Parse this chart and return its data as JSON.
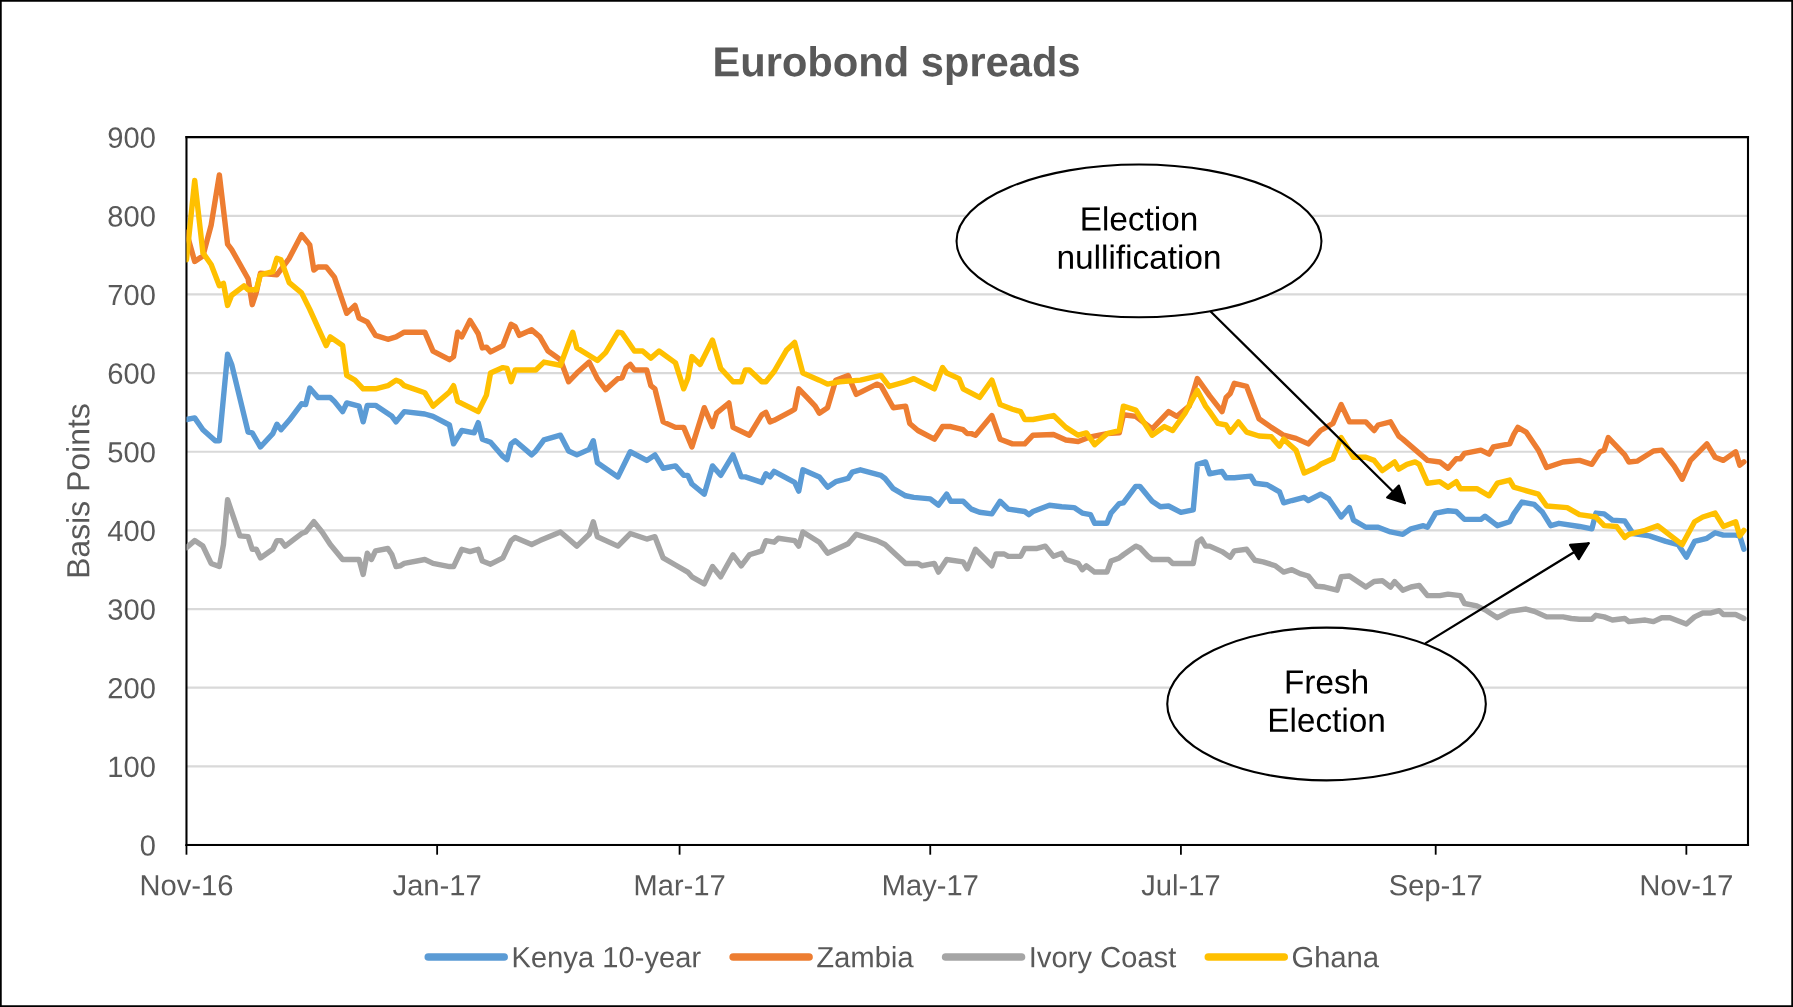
{
  "chart_data": {
    "type": "line",
    "title": "Eurobond spreads",
    "ylabel": "Basis Points",
    "xlim": [
      "2016-11-01",
      "2017-11-16"
    ],
    "xticks": [
      {
        "value": "2016-11-01",
        "label": "Nov-16"
      },
      {
        "value": "2017-01-01",
        "label": "Jan-17"
      },
      {
        "value": "2017-03-01",
        "label": "Mar-17"
      },
      {
        "value": "2017-05-01",
        "label": "May-17"
      },
      {
        "value": "2017-07-01",
        "label": "Jul-17"
      },
      {
        "value": "2017-09-01",
        "label": "Sep-17"
      },
      {
        "value": "2017-11-01",
        "label": "Nov-17"
      }
    ],
    "ylim": [
      0,
      900
    ],
    "yticks": [
      0,
      100,
      200,
      300,
      400,
      500,
      600,
      700,
      800,
      900
    ],
    "grid": "y",
    "legend": "bottom",
    "annotations": [
      "Election\nnullification",
      "Fresh\nElection"
    ],
    "series": [
      {
        "name": "Kenya 10-year",
        "color": "#5b9bd5",
        "x": [
          "2016-11-01",
          "2016-11-03",
          "2016-11-05",
          "2016-11-08",
          "2016-11-09",
          "2016-11-11",
          "2016-11-12",
          "2016-11-16",
          "2016-11-17",
          "2016-11-19",
          "2016-11-22",
          "2016-11-23",
          "2016-11-24",
          "2016-11-26",
          "2016-11-29",
          "2016-11-30",
          "2016-12-01",
          "2016-12-03",
          "2016-12-06",
          "2016-12-07",
          "2016-12-09",
          "2016-12-10",
          "2016-12-13",
          "2016-12-14",
          "2016-12-15",
          "2016-12-17",
          "2016-12-21",
          "2016-12-22",
          "2016-12-24",
          "2016-12-29",
          "2016-12-31",
          "2017-01-04",
          "2017-01-05",
          "2017-01-07",
          "2017-01-10",
          "2017-01-11",
          "2017-01-12",
          "2017-01-14",
          "2017-01-17",
          "2017-01-18",
          "2017-01-19",
          "2017-01-20",
          "2017-01-24",
          "2017-01-25",
          "2017-01-27",
          "2017-01-31",
          "2017-02-02",
          "2017-02-04",
          "2017-02-07",
          "2017-02-08",
          "2017-02-09",
          "2017-02-14",
          "2017-02-17",
          "2017-02-21",
          "2017-02-23",
          "2017-02-25",
          "2017-02-28",
          "2017-03-02",
          "2017-03-03",
          "2017-03-04",
          "2017-03-07",
          "2017-03-09",
          "2017-03-11",
          "2017-03-14",
          "2017-03-16",
          "2017-03-17",
          "2017-03-21",
          "2017-03-22",
          "2017-03-23",
          "2017-03-24",
          "2017-03-29",
          "2017-03-30",
          "2017-03-31",
          "2017-04-04",
          "2017-04-06",
          "2017-04-08",
          "2017-04-11",
          "2017-04-12",
          "2017-04-14",
          "2017-04-19",
          "2017-04-20",
          "2017-04-22",
          "2017-04-25",
          "2017-04-27",
          "2017-05-01",
          "2017-05-03",
          "2017-05-05",
          "2017-05-06",
          "2017-05-09",
          "2017-05-11",
          "2017-05-13",
          "2017-05-16",
          "2017-05-18",
          "2017-05-20",
          "2017-05-24",
          "2017-05-25",
          "2017-05-26",
          "2017-05-30",
          "2017-06-02",
          "2017-06-05",
          "2017-06-07",
          "2017-06-09",
          "2017-06-10",
          "2017-06-13",
          "2017-06-14",
          "2017-06-16",
          "2017-06-17",
          "2017-06-20",
          "2017-06-21",
          "2017-06-24",
          "2017-06-26",
          "2017-06-28",
          "2017-07-01",
          "2017-07-04",
          "2017-07-05",
          "2017-07-07",
          "2017-07-08",
          "2017-07-11",
          "2017-07-12",
          "2017-07-14",
          "2017-07-18",
          "2017-07-19",
          "2017-07-22",
          "2017-07-25",
          "2017-07-26",
          "2017-07-28",
          "2017-07-31",
          "2017-08-01",
          "2017-08-04",
          "2017-08-06",
          "2017-08-09",
          "2017-08-11",
          "2017-08-12",
          "2017-08-15",
          "2017-08-18",
          "2017-08-21",
          "2017-08-24",
          "2017-08-26",
          "2017-08-29",
          "2017-08-30",
          "2017-09-01",
          "2017-09-04",
          "2017-09-06",
          "2017-09-08",
          "2017-09-12",
          "2017-09-13",
          "2017-09-16",
          "2017-09-19",
          "2017-09-20",
          "2017-09-22",
          "2017-09-25",
          "2017-09-27",
          "2017-09-29",
          "2017-10-01",
          "2017-10-06",
          "2017-10-09",
          "2017-10-10",
          "2017-10-12",
          "2017-10-14",
          "2017-10-17",
          "2017-10-19",
          "2017-10-23",
          "2017-10-27",
          "2017-10-30",
          "2017-11-01",
          "2017-11-03",
          "2017-11-06",
          "2017-11-08",
          "2017-11-10",
          "2017-11-13",
          "2017-11-14",
          "2017-11-15"
        ],
        "values": [
          541,
          543,
          528,
          514,
          514,
          624,
          611,
          525,
          524,
          506,
          523,
          535,
          528,
          540,
          561,
          560,
          581,
          569,
          569,
          564,
          551,
          562,
          558,
          538,
          559,
          559,
          545,
          538,
          551,
          548,
          545,
          534,
          510,
          527,
          524,
          537,
          516,
          512,
          494,
          490,
          510,
          514,
          496,
          501,
          515,
          521,
          501,
          496,
          503,
          514,
          486,
          468,
          500,
          489,
          496,
          479,
          482,
          470,
          470,
          459,
          446,
          482,
          470,
          496,
          468,
          468,
          461,
          472,
          468,
          475,
          461,
          450,
          477,
          468,
          455,
          462,
          466,
          474,
          477,
          470,
          466,
          453,
          444,
          442,
          440,
          432,
          446,
          437,
          437,
          427,
          423,
          421,
          437,
          427,
          424,
          420,
          424,
          432,
          430,
          429,
          422,
          420,
          409,
          409,
          422,
          434,
          435,
          456,
          456,
          437,
          430,
          431,
          423,
          426,
          484,
          487,
          472,
          475,
          467,
          467,
          469,
          460,
          458,
          449,
          435,
          438,
          442,
          438,
          446,
          440,
          417,
          429,
          413,
          404,
          404,
          398,
          395,
          402,
          406,
          404,
          422,
          425,
          424,
          414,
          414,
          418,
          406,
          411,
          421,
          436,
          433,
          423,
          406,
          409,
          405,
          402,
          422,
          421,
          413,
          412,
          396,
          393,
          386,
          382,
          366,
          386,
          390,
          397,
          394,
          394,
          393,
          376
        ]
      },
      {
        "name": "Zambia",
        "color": "#ed7d31",
        "x": [
          "2016-11-01",
          "2016-11-03",
          "2016-11-05",
          "2016-11-07",
          "2016-11-09",
          "2016-11-11",
          "2016-11-12",
          "2016-11-16",
          "2016-11-17",
          "2016-11-18",
          "2016-11-19",
          "2016-11-23",
          "2016-11-26",
          "2016-11-29",
          "2016-12-01",
          "2016-12-02",
          "2016-12-03",
          "2016-12-05",
          "2016-12-07",
          "2016-12-10",
          "2016-12-12",
          "2016-12-13",
          "2016-12-15",
          "2016-12-17",
          "2016-12-20",
          "2016-12-22",
          "2016-12-24",
          "2016-12-29",
          "2016-12-31",
          "2017-01-04",
          "2017-01-05",
          "2017-01-06",
          "2017-01-07",
          "2017-01-09",
          "2017-01-11",
          "2017-01-12",
          "2017-01-13",
          "2017-01-14",
          "2017-01-17",
          "2017-01-19",
          "2017-01-20",
          "2017-01-21",
          "2017-01-24",
          "2017-01-26",
          "2017-01-28",
          "2017-01-31",
          "2017-02-02",
          "2017-02-04",
          "2017-02-07",
          "2017-02-09",
          "2017-02-11",
          "2017-02-14",
          "2017-02-15",
          "2017-02-16",
          "2017-02-17",
          "2017-02-18",
          "2017-02-21",
          "2017-02-22",
          "2017-02-23",
          "2017-02-25",
          "2017-02-28",
          "2017-03-02",
          "2017-03-04",
          "2017-03-07",
          "2017-03-09",
          "2017-03-10",
          "2017-03-13",
          "2017-03-14",
          "2017-03-18",
          "2017-03-21",
          "2017-03-22",
          "2017-03-23",
          "2017-03-24",
          "2017-03-28",
          "2017-03-29",
          "2017-03-30",
          "2017-04-01",
          "2017-04-03",
          "2017-04-04",
          "2017-04-06",
          "2017-04-08",
          "2017-04-11",
          "2017-04-13",
          "2017-04-18",
          "2017-04-19",
          "2017-04-22",
          "2017-04-25",
          "2017-04-26",
          "2017-04-28",
          "2017-05-02",
          "2017-05-04",
          "2017-05-06",
          "2017-05-09",
          "2017-05-10",
          "2017-05-11",
          "2017-05-12",
          "2017-05-16",
          "2017-05-18",
          "2017-05-21",
          "2017-05-24",
          "2017-05-26",
          "2017-05-31",
          "2017-06-03",
          "2017-06-06",
          "2017-06-09",
          "2017-06-13",
          "2017-06-16",
          "2017-06-17",
          "2017-06-20",
          "2017-06-24",
          "2017-06-28",
          "2017-06-30",
          "2017-07-03",
          "2017-07-05",
          "2017-07-08",
          "2017-07-11",
          "2017-07-12",
          "2017-07-13",
          "2017-07-14",
          "2017-07-17",
          "2017-07-20",
          "2017-07-23",
          "2017-07-26",
          "2017-07-29",
          "2017-08-01",
          "2017-08-04",
          "2017-08-07",
          "2017-08-09",
          "2017-08-11",
          "2017-08-15",
          "2017-08-17",
          "2017-08-18",
          "2017-08-21",
          "2017-08-23",
          "2017-08-24",
          "2017-08-30",
          "2017-09-02",
          "2017-09-04",
          "2017-09-06",
          "2017-09-07",
          "2017-09-08",
          "2017-09-12",
          "2017-09-14",
          "2017-09-15",
          "2017-09-19",
          "2017-09-20",
          "2017-09-21",
          "2017-09-23",
          "2017-09-26",
          "2017-09-28",
          "2017-10-02",
          "2017-10-06",
          "2017-10-09",
          "2017-10-11",
          "2017-10-12",
          "2017-10-13",
          "2017-10-17",
          "2017-10-18",
          "2017-10-20",
          "2017-10-24",
          "2017-10-26",
          "2017-10-29",
          "2017-10-31",
          "2017-11-02",
          "2017-11-06",
          "2017-11-08",
          "2017-11-10",
          "2017-11-13",
          "2017-11-14",
          "2017-11-15"
        ],
        "values": [
          779,
          742,
          749,
          788,
          852,
          764,
          757,
          720,
          687,
          703,
          727,
          725,
          746,
          776,
          763,
          731,
          735,
          735,
          722,
          676,
          686,
          670,
          665,
          648,
          643,
          646,
          652,
          652,
          628,
          617,
          621,
          652,
          646,
          667,
          650,
          632,
          633,
          627,
          635,
          662,
          659,
          648,
          655,
          646,
          628,
          617,
          589,
          600,
          614,
          593,
          579,
          593,
          594,
          607,
          611,
          604,
          604,
          584,
          580,
          538,
          531,
          531,
          506,
          556,
          532,
          549,
          562,
          531,
          521,
          547,
          550,
          538,
          540,
          551,
          554,
          580,
          569,
          558,
          549,
          556,
          591,
          597,
          573,
          586,
          584,
          556,
          558,
          536,
          527,
          516,
          532,
          532,
          528,
          523,
          523,
          521,
          546,
          516,
          510,
          510,
          521,
          522,
          515,
          513,
          519,
          523,
          524,
          547,
          545,
          529,
          551,
          545,
          558,
          593,
          571,
          551,
          569,
          574,
          587,
          583,
          542,
          531,
          521,
          517,
          510,
          527,
          536,
          560,
          538,
          538,
          527,
          534,
          538,
          520,
          516,
          489,
          487,
          479,
          491,
          491,
          498,
          502,
          497,
          506,
          510,
          522,
          531,
          525,
          502,
          480,
          487,
          489,
          484,
          500,
          502,
          518,
          496,
          487,
          488,
          501,
          502,
          482,
          465,
          489,
          510,
          493,
          489,
          500,
          483,
          487
        ]
      },
      {
        "name": "Ivory Coast",
        "color": "#a5a5a5",
        "x": [
          "2016-11-01",
          "2016-11-03",
          "2016-11-05",
          "2016-11-07",
          "2016-11-09",
          "2016-11-10",
          "2016-11-11",
          "2016-11-14",
          "2016-11-16",
          "2016-11-17",
          "2016-11-18",
          "2016-11-19",
          "2016-11-22",
          "2016-11-23",
          "2016-11-24",
          "2016-11-25",
          "2016-11-29",
          "2016-11-30",
          "2016-12-02",
          "2016-12-04",
          "2016-12-06",
          "2016-12-09",
          "2016-12-13",
          "2016-12-14",
          "2016-12-15",
          "2016-12-16",
          "2016-12-17",
          "2016-12-20",
          "2016-12-21",
          "2016-12-22",
          "2016-12-23",
          "2016-12-24",
          "2016-12-29",
          "2016-12-31",
          "2017-01-04",
          "2017-01-05",
          "2017-01-07",
          "2017-01-09",
          "2017-01-11",
          "2017-01-12",
          "2017-01-14",
          "2017-01-17",
          "2017-01-19",
          "2017-01-20",
          "2017-01-24",
          "2017-01-26",
          "2017-01-31",
          "2017-02-02",
          "2017-02-04",
          "2017-02-07",
          "2017-02-08",
          "2017-02-09",
          "2017-02-14",
          "2017-02-17",
          "2017-02-21",
          "2017-02-23",
          "2017-02-25",
          "2017-02-28",
          "2017-03-03",
          "2017-03-04",
          "2017-03-07",
          "2017-03-09",
          "2017-03-11",
          "2017-03-14",
          "2017-03-16",
          "2017-03-18",
          "2017-03-21",
          "2017-03-22",
          "2017-03-24",
          "2017-03-25",
          "2017-03-29",
          "2017-03-30",
          "2017-03-31",
          "2017-04-04",
          "2017-04-06",
          "2017-04-11",
          "2017-04-13",
          "2017-04-18",
          "2017-04-20",
          "2017-04-25",
          "2017-04-28",
          "2017-04-29",
          "2017-05-02",
          "2017-05-03",
          "2017-05-05",
          "2017-05-09",
          "2017-05-10",
          "2017-05-12",
          "2017-05-16",
          "2017-05-17",
          "2017-05-19",
          "2017-05-20",
          "2017-05-23",
          "2017-05-24",
          "2017-05-27",
          "2017-05-29",
          "2017-05-31",
          "2017-06-02",
          "2017-06-03",
          "2017-06-06",
          "2017-06-07",
          "2017-06-08",
          "2017-06-10",
          "2017-06-13",
          "2017-06-14",
          "2017-06-16",
          "2017-06-17",
          "2017-06-20",
          "2017-06-21",
          "2017-06-23",
          "2017-06-24",
          "2017-06-28",
          "2017-06-29",
          "2017-07-04",
          "2017-07-05",
          "2017-07-06",
          "2017-07-07",
          "2017-07-08",
          "2017-07-11",
          "2017-07-13",
          "2017-07-14",
          "2017-07-17",
          "2017-07-19",
          "2017-07-21",
          "2017-07-24",
          "2017-07-26",
          "2017-07-28",
          "2017-07-30",
          "2017-08-01",
          "2017-08-03",
          "2017-08-05",
          "2017-08-08",
          "2017-08-09",
          "2017-08-11",
          "2017-08-15",
          "2017-08-17",
          "2017-08-19",
          "2017-08-21",
          "2017-08-22",
          "2017-08-24",
          "2017-08-26",
          "2017-08-28",
          "2017-08-30",
          "2017-09-02",
          "2017-09-04",
          "2017-09-07",
          "2017-09-08",
          "2017-09-11",
          "2017-09-13",
          "2017-09-16",
          "2017-09-19",
          "2017-09-23",
          "2017-09-25",
          "2017-09-28",
          "2017-10-02",
          "2017-10-04",
          "2017-10-06",
          "2017-10-09",
          "2017-10-10",
          "2017-10-12",
          "2017-10-14",
          "2017-10-17",
          "2017-10-18",
          "2017-10-22",
          "2017-10-24",
          "2017-10-26",
          "2017-10-28",
          "2017-11-01",
          "2017-11-03",
          "2017-11-05",
          "2017-11-07",
          "2017-11-09",
          "2017-11-10",
          "2017-11-13",
          "2017-11-15"
        ],
        "values": [
          378,
          387,
          380,
          358,
          354,
          382,
          439,
          393,
          392,
          376,
          376,
          365,
          376,
          387,
          387,
          380,
          396,
          398,
          411,
          398,
          382,
          363,
          363,
          344,
          371,
          363,
          374,
          377,
          369,
          354,
          355,
          358,
          363,
          358,
          354,
          354,
          376,
          373,
          376,
          361,
          357,
          365,
          387,
          391,
          382,
          387,
          398,
          389,
          380,
          395,
          411,
          392,
          380,
          396,
          389,
          392,
          365,
          356,
          347,
          341,
          332,
          354,
          341,
          369,
          355,
          369,
          374,
          387,
          385,
          390,
          387,
          380,
          398,
          385,
          371,
          383,
          395,
          387,
          382,
          358,
          358,
          355,
          358,
          347,
          363,
          360,
          351,
          376,
          355,
          370,
          370,
          367,
          367,
          377,
          377,
          380,
          367,
          371,
          363,
          358,
          350,
          355,
          347,
          347,
          361,
          365,
          369,
          380,
          378,
          367,
          363,
          363,
          358,
          358,
          385,
          389,
          380,
          380,
          373,
          366,
          374,
          376,
          362,
          360,
          355,
          347,
          350,
          345,
          342,
          329,
          328,
          324,
          341,
          342,
          328,
          335,
          336,
          328,
          335,
          324,
          328,
          330,
          317,
          317,
          319,
          317,
          307,
          304,
          299,
          289,
          297,
          300,
          297,
          290,
          290,
          288,
          287,
          287,
          292,
          290,
          286,
          288,
          284,
          286,
          284,
          289,
          289,
          281,
          290,
          295,
          295,
          298,
          293,
          293,
          288
        ]
      },
      {
        "name": "Ghana",
        "color": "#ffc000",
        "x": [
          "2016-11-01",
          "2016-11-03",
          "2016-11-05",
          "2016-11-07",
          "2016-11-09",
          "2016-11-10",
          "2016-11-11",
          "2016-11-12",
          "2016-11-15",
          "2016-11-16",
          "2016-11-18",
          "2016-11-19",
          "2016-11-22",
          "2016-11-23",
          "2016-11-24",
          "2016-11-26",
          "2016-11-29",
          "2016-12-01",
          "2016-12-05",
          "2016-12-06",
          "2016-12-09",
          "2016-12-10",
          "2016-12-12",
          "2016-12-14",
          "2016-12-17",
          "2016-12-20",
          "2016-12-22",
          "2016-12-23",
          "2016-12-24",
          "2016-12-29",
          "2016-12-31",
          "2017-01-04",
          "2017-01-05",
          "2017-01-06",
          "2017-01-11",
          "2017-01-13",
          "2017-01-14",
          "2017-01-17",
          "2017-01-18",
          "2017-01-19",
          "2017-01-20",
          "2017-01-25",
          "2017-01-27",
          "2017-01-31",
          "2017-02-03",
          "2017-02-04",
          "2017-02-09",
          "2017-02-11",
          "2017-02-14",
          "2017-02-15",
          "2017-02-18",
          "2017-02-20",
          "2017-02-22",
          "2017-02-24",
          "2017-02-28",
          "2017-03-02",
          "2017-03-03",
          "2017-03-04",
          "2017-03-06",
          "2017-03-09",
          "2017-03-11",
          "2017-03-14",
          "2017-03-16",
          "2017-03-17",
          "2017-03-18",
          "2017-03-21",
          "2017-03-22",
          "2017-03-24",
          "2017-03-27",
          "2017-03-29",
          "2017-03-31",
          "2017-04-04",
          "2017-04-06",
          "2017-04-09",
          "2017-04-14",
          "2017-04-19",
          "2017-04-21",
          "2017-04-25",
          "2017-04-27",
          "2017-05-02",
          "2017-05-04",
          "2017-05-05",
          "2017-05-08",
          "2017-05-09",
          "2017-05-13",
          "2017-05-16",
          "2017-05-18",
          "2017-05-21",
          "2017-05-23",
          "2017-05-24",
          "2017-05-26",
          "2017-05-31",
          "2017-06-03",
          "2017-06-06",
          "2017-06-08",
          "2017-06-10",
          "2017-06-13",
          "2017-06-16",
          "2017-06-17",
          "2017-06-20",
          "2017-06-24",
          "2017-06-27",
          "2017-06-29",
          "2017-07-02",
          "2017-07-05",
          "2017-07-07",
          "2017-07-08",
          "2017-07-10",
          "2017-07-12",
          "2017-07-13",
          "2017-07-15",
          "2017-07-17",
          "2017-07-20",
          "2017-07-23",
          "2017-07-25",
          "2017-07-26",
          "2017-07-29",
          "2017-07-31",
          "2017-08-03",
          "2017-08-04",
          "2017-08-07",
          "2017-08-09",
          "2017-08-12",
          "2017-08-15",
          "2017-08-17",
          "2017-08-19",
          "2017-08-22",
          "2017-08-23",
          "2017-08-25",
          "2017-08-27",
          "2017-08-28",
          "2017-08-30",
          "2017-09-02",
          "2017-09-04",
          "2017-09-06",
          "2017-09-07",
          "2017-09-11",
          "2017-09-14",
          "2017-09-16",
          "2017-09-19",
          "2017-09-20",
          "2017-09-22",
          "2017-09-26",
          "2017-09-28",
          "2017-10-03",
          "2017-10-06",
          "2017-10-10",
          "2017-10-12",
          "2017-10-15",
          "2017-10-17",
          "2017-10-18",
          "2017-10-22",
          "2017-10-25",
          "2017-10-31",
          "2017-11-03",
          "2017-11-05",
          "2017-11-08",
          "2017-11-10",
          "2017-11-13",
          "2017-11-14",
          "2017-11-15"
        ],
        "values": [
          744,
          845,
          753,
          738,
          711,
          714,
          686,
          699,
          711,
          706,
          706,
          725,
          729,
          746,
          744,
          715,
          702,
          681,
          635,
          646,
          635,
          597,
          591,
          580,
          580,
          584,
          591,
          589,
          584,
          575,
          558,
          576,
          584,
          564,
          551,
          572,
          600,
          607,
          606,
          589,
          604,
          604,
          614,
          610,
          652,
          632,
          616,
          626,
          652,
          651,
          628,
          628,
          619,
          628,
          613,
          580,
          593,
          621,
          611,
          642,
          606,
          589,
          589,
          604,
          604,
          589,
          589,
          602,
          629,
          639,
          600,
          591,
          586,
          589,
          591,
          597,
          583,
          589,
          593,
          580,
          607,
          600,
          593,
          580,
          569,
          591,
          560,
          554,
          551,
          541,
          541,
          546,
          531,
          521,
          524,
          509,
          523,
          527,
          558,
          553,
          521,
          532,
          527,
          549,
          578,
          558,
          551,
          536,
          534,
          525,
          538,
          525,
          520,
          519,
          507,
          516,
          502,
          473,
          480,
          484,
          491,
          518,
          493,
          493,
          489,
          476,
          487,
          478,
          484,
          487,
          484,
          460,
          462,
          455,
          462,
          453,
          453,
          444,
          460,
          464,
          455,
          452,
          446,
          431,
          429,
          420,
          417,
          406,
          405,
          391,
          395,
          400,
          406,
          382,
          411,
          417,
          422,
          405,
          411,
          393,
          400
        ]
      }
    ]
  }
}
